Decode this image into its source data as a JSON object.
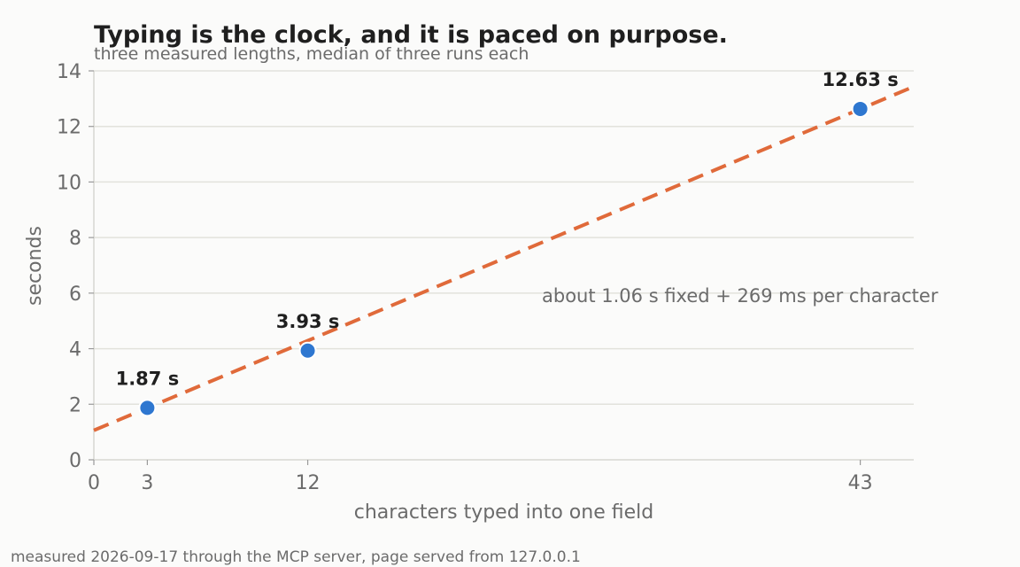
{
  "chart_data": {
    "type": "scatter",
    "title": "Typing is the clock, and it is paced on purpose.",
    "subtitle": "three measured lengths, median of three runs each",
    "xlabel": "characters typed into one field",
    "ylabel": "seconds",
    "xlim": [
      0,
      46
    ],
    "ylim": [
      0,
      14
    ],
    "x_ticks": [
      0,
      3,
      12,
      43
    ],
    "y_ticks": [
      0,
      2,
      4,
      6,
      8,
      10,
      12,
      14
    ],
    "grid": "horizontal",
    "points": [
      {
        "x": 3,
        "y": 1.87,
        "label": "1.87 s"
      },
      {
        "x": 12,
        "y": 3.93,
        "label": "3.93 s"
      },
      {
        "x": 43,
        "y": 12.63,
        "label": "12.63 s"
      }
    ],
    "fit": {
      "intercept": 1.06,
      "slope": 0.269
    },
    "annotation": "about 1.06 s fixed + 269 ms per character",
    "footnote": "measured 2026-09-17 through the MCP server, page served from 127.0.0.1",
    "colors": {
      "points": "#2e77d0",
      "fit_line": "#e06a3a",
      "grid": "#e2e2dc",
      "text": "#6b6b6b"
    }
  }
}
